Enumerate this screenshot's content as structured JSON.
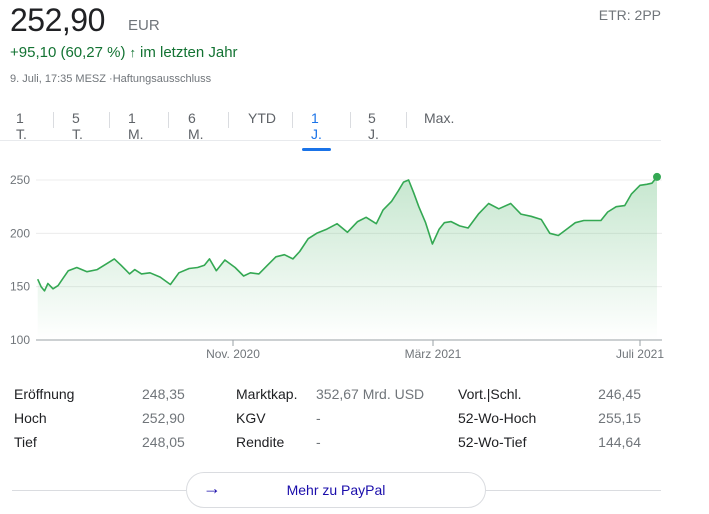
{
  "quote": {
    "price": "252,90",
    "currency": "EUR",
    "exchange": "ETR: 2PP",
    "change": "+95,10 (60,27 %)",
    "change_arrow": "↑",
    "period": "im letzten Jahr",
    "timestamp": "9. Juli, 17:35 MESZ ·Haftungsausschluss"
  },
  "tabs": [
    {
      "label": "1 T."
    },
    {
      "label": "5 T."
    },
    {
      "label": "1 M."
    },
    {
      "label": "6 M."
    },
    {
      "label": "YTD"
    },
    {
      "label": "1 J.",
      "active": true
    },
    {
      "label": "5 J."
    },
    {
      "label": "Max."
    }
  ],
  "colors": {
    "line": "#34a853",
    "accent": "#1a73e8",
    "up": "#137333"
  },
  "chart_data": {
    "type": "area",
    "y_ticks": [
      "250",
      "200",
      "150",
      "100"
    ],
    "ylim": [
      100,
      260
    ],
    "x_ticks": [
      "Nov. 2020",
      "März 2021",
      "Juli 2021"
    ],
    "x": [
      "2020-07-10",
      "2020-07-12",
      "2020-07-14",
      "2020-07-16",
      "2020-07-19",
      "2020-07-22",
      "2020-07-25",
      "2020-07-28",
      "2020-08-02",
      "2020-08-08",
      "2020-08-14",
      "2020-08-20",
      "2020-08-24",
      "2020-08-28",
      "2020-09-02",
      "2020-09-05",
      "2020-09-09",
      "2020-09-14",
      "2020-09-20",
      "2020-09-26",
      "2020-10-01",
      "2020-10-07",
      "2020-10-12",
      "2020-10-16",
      "2020-10-19",
      "2020-10-23",
      "2020-10-28",
      "2020-11-03",
      "2020-11-08",
      "2020-11-12",
      "2020-11-17",
      "2020-11-22",
      "2020-11-27",
      "2020-12-02",
      "2020-12-07",
      "2020-12-11",
      "2020-12-16",
      "2020-12-21",
      "2020-12-27",
      "2021-01-02",
      "2021-01-08",
      "2021-01-14",
      "2021-01-19",
      "2021-01-25",
      "2021-01-29",
      "2021-02-03",
      "2021-02-07",
      "2021-02-10",
      "2021-02-13",
      "2021-02-16",
      "2021-02-19",
      "2021-02-23",
      "2021-02-27",
      "2021-03-03",
      "2021-03-06",
      "2021-03-10",
      "2021-03-15",
      "2021-03-20",
      "2021-03-26",
      "2021-04-01",
      "2021-04-07",
      "2021-04-14",
      "2021-04-20",
      "2021-04-26",
      "2021-05-02",
      "2021-05-07",
      "2021-05-12",
      "2021-05-17",
      "2021-05-22",
      "2021-05-27",
      "2021-06-01",
      "2021-06-06",
      "2021-06-10",
      "2021-06-15",
      "2021-06-20",
      "2021-06-24",
      "2021-06-29",
      "2021-07-03",
      "2021-07-06",
      "2021-07-09"
    ],
    "values": [
      157,
      150,
      146,
      153,
      148,
      151,
      158,
      165,
      168,
      164,
      166,
      172,
      176,
      170,
      162,
      166,
      162,
      163,
      159,
      152,
      163,
      167,
      168,
      170,
      176,
      165,
      175,
      168,
      160,
      163,
      162,
      170,
      178,
      180,
      176,
      183,
      195,
      200,
      204,
      209,
      201,
      211,
      215,
      209,
      222,
      230,
      240,
      248,
      250,
      238,
      225,
      210,
      190,
      204,
      210,
      211,
      207,
      205,
      218,
      228,
      223,
      228,
      218,
      216,
      213,
      200,
      198,
      204,
      210,
      212,
      212,
      212,
      220,
      225,
      226,
      237,
      245,
      246,
      247,
      252.9
    ]
  },
  "stats": {
    "col1": [
      {
        "label": "Eröffnung",
        "value": "248,35"
      },
      {
        "label": "Hoch",
        "value": "252,90"
      },
      {
        "label": "Tief",
        "value": "248,05"
      }
    ],
    "col2": [
      {
        "label": "Marktkap.",
        "value": "352,67 Mrd. USD"
      },
      {
        "label": "KGV",
        "value": "-"
      },
      {
        "label": "Rendite",
        "value": "-"
      }
    ],
    "col3": [
      {
        "label": "Vort.|Schl.",
        "value": "246,45"
      },
      {
        "label": "52-Wo-Hoch",
        "value": "255,15"
      },
      {
        "label": "52-Wo-Tief",
        "value": "144,64"
      }
    ]
  },
  "more": {
    "arrow": "→",
    "label": "Mehr zu PayPal"
  }
}
